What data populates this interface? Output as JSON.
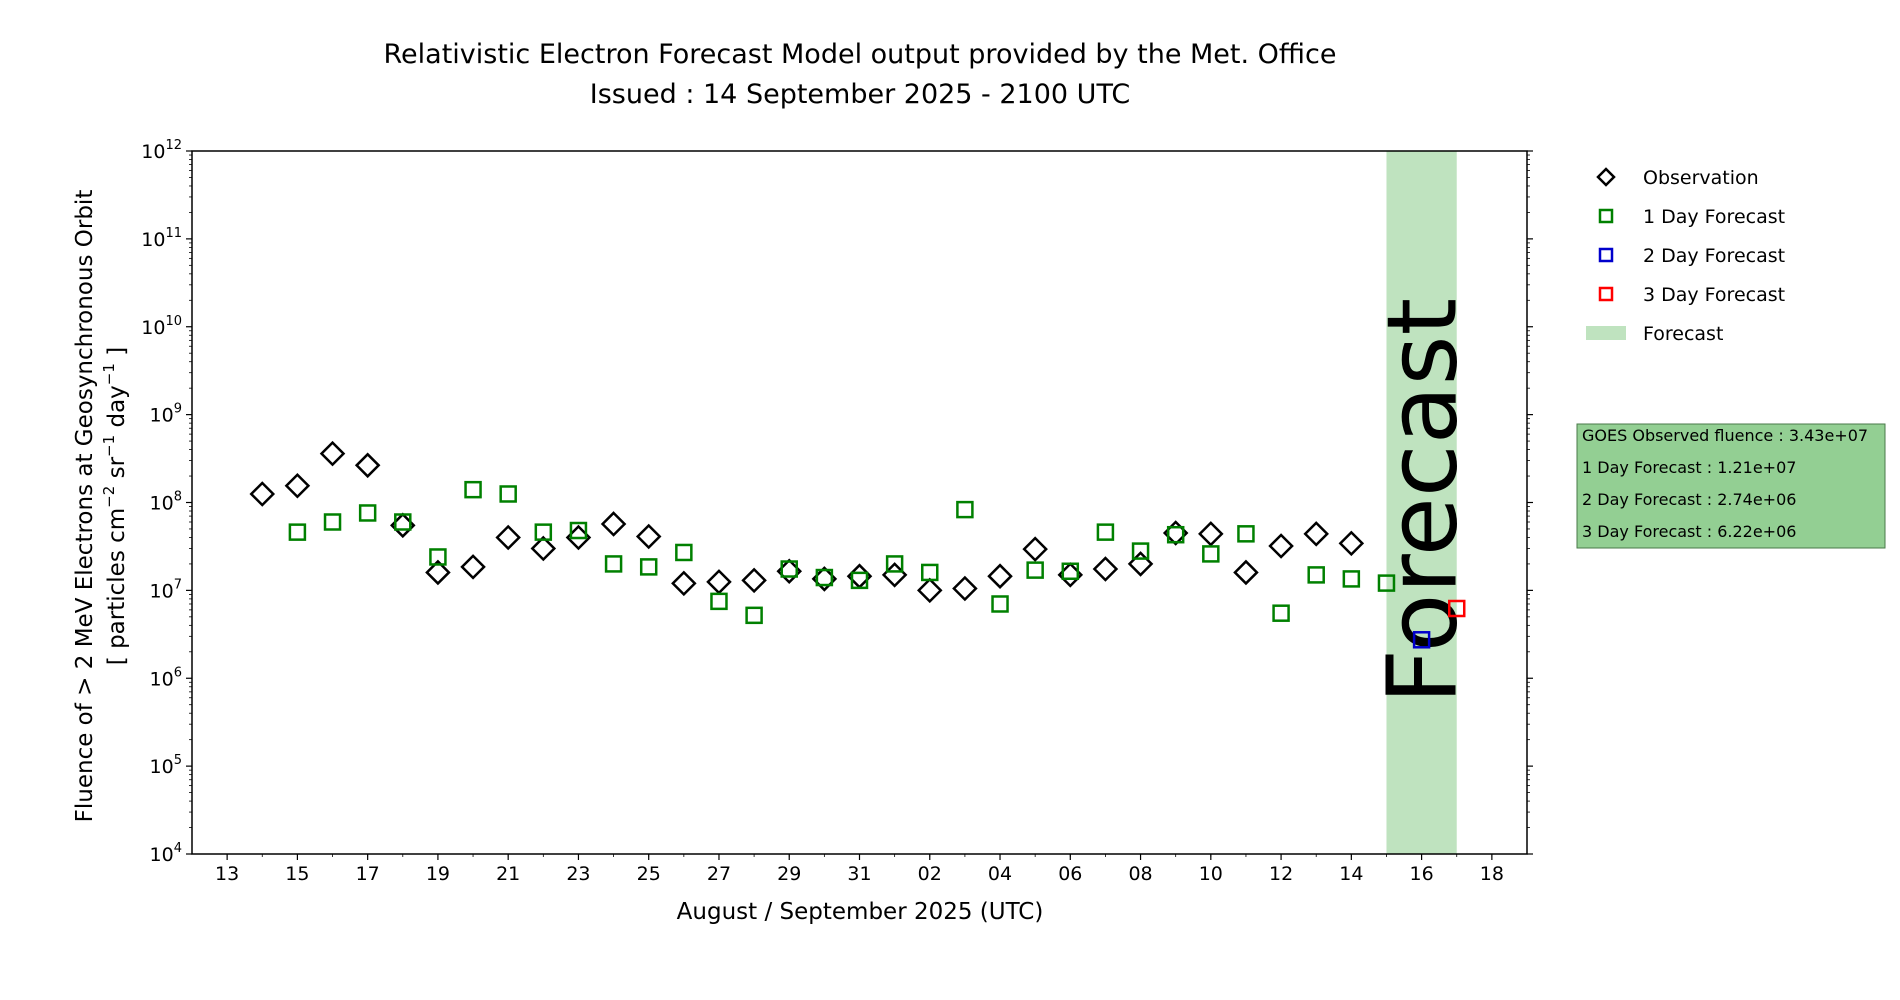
{
  "chart_data": {
    "type": "scatter",
    "title": "Relativistic Electron Forecast Model output provided by the Met. Office",
    "subtitle": "Issued : 14 September 2025 - 2100 UTC",
    "xlabel": "August / September 2025 (UTC)",
    "ylabel": {
      "line1": "Fluence of > 2 MeV Electrons at Geosynchronous Orbit",
      "line2": "[ particles cm",
      "line2_sup1": "−2",
      "line2_mid": " sr",
      "line2_sup2": "−1",
      "line2_end": " day",
      "line2_sup3": "−1",
      "line2_close": " ]"
    },
    "y_scale": "log",
    "ylim_exp": [
      4,
      12
    ],
    "y_ticks": [
      {
        "base": "10",
        "exp": "4"
      },
      {
        "base": "10",
        "exp": "5"
      },
      {
        "base": "10",
        "exp": "6"
      },
      {
        "base": "10",
        "exp": "7"
      },
      {
        "base": "10",
        "exp": "8"
      },
      {
        "base": "10",
        "exp": "9"
      },
      {
        "base": "10",
        "exp": "10"
      },
      {
        "base": "10",
        "exp": "11"
      },
      {
        "base": "10",
        "exp": "12"
      }
    ],
    "xlim": [
      "2025-08-12",
      "2025-09-19"
    ],
    "x_ticks": [
      {
        "date": "2025-08-13",
        "label": "13"
      },
      {
        "date": "2025-08-15",
        "label": "15"
      },
      {
        "date": "2025-08-17",
        "label": "17"
      },
      {
        "date": "2025-08-19",
        "label": "19"
      },
      {
        "date": "2025-08-21",
        "label": "21"
      },
      {
        "date": "2025-08-23",
        "label": "23"
      },
      {
        "date": "2025-08-25",
        "label": "25"
      },
      {
        "date": "2025-08-27",
        "label": "27"
      },
      {
        "date": "2025-08-29",
        "label": "29"
      },
      {
        "date": "2025-08-31",
        "label": "31"
      },
      {
        "date": "2025-09-02",
        "label": "02"
      },
      {
        "date": "2025-09-04",
        "label": "04"
      },
      {
        "date": "2025-09-06",
        "label": "06"
      },
      {
        "date": "2025-09-08",
        "label": "08"
      },
      {
        "date": "2025-09-10",
        "label": "10"
      },
      {
        "date": "2025-09-12",
        "label": "12"
      },
      {
        "date": "2025-09-14",
        "label": "14"
      },
      {
        "date": "2025-09-16",
        "label": "16"
      },
      {
        "date": "2025-09-18",
        "label": "18"
      }
    ],
    "forecast_region": {
      "start": "2025-09-15",
      "end": "2025-09-17",
      "label": "Forecast"
    },
    "series": [
      {
        "name": "Observation",
        "marker": "diamond",
        "color": "#000000",
        "points": [
          {
            "x": "2025-08-14",
            "y": 125000000.0
          },
          {
            "x": "2025-08-15",
            "y": 155000000.0
          },
          {
            "x": "2025-08-16",
            "y": 360000000.0
          },
          {
            "x": "2025-08-17",
            "y": 265000000.0
          },
          {
            "x": "2025-08-18",
            "y": 55000000.0
          },
          {
            "x": "2025-08-19",
            "y": 16000000.0
          },
          {
            "x": "2025-08-20",
            "y": 18500000.0
          },
          {
            "x": "2025-08-21",
            "y": 40000000.0
          },
          {
            "x": "2025-08-22",
            "y": 30000000.0
          },
          {
            "x": "2025-08-23",
            "y": 40000000.0
          },
          {
            "x": "2025-08-24",
            "y": 57000000.0
          },
          {
            "x": "2025-08-25",
            "y": 41000000.0
          },
          {
            "x": "2025-08-26",
            "y": 12000000.0
          },
          {
            "x": "2025-08-27",
            "y": 12500000.0
          },
          {
            "x": "2025-08-28",
            "y": 13000000.0
          },
          {
            "x": "2025-08-29",
            "y": 16500000.0
          },
          {
            "x": "2025-08-30",
            "y": 13500000.0
          },
          {
            "x": "2025-08-31",
            "y": 14500000.0
          },
          {
            "x": "2025-09-01",
            "y": 15000000.0
          },
          {
            "x": "2025-09-02",
            "y": 10000000.0
          },
          {
            "x": "2025-09-03",
            "y": 10500000.0
          },
          {
            "x": "2025-09-04",
            "y": 14500000.0
          },
          {
            "x": "2025-09-05",
            "y": 29500000.0
          },
          {
            "x": "2025-09-06",
            "y": 15000000.0
          },
          {
            "x": "2025-09-07",
            "y": 17500000.0
          },
          {
            "x": "2025-09-08",
            "y": 20000000.0
          },
          {
            "x": "2025-09-09",
            "y": 45000000.0
          },
          {
            "x": "2025-09-10",
            "y": 44000000.0
          },
          {
            "x": "2025-09-11",
            "y": 16000000.0
          },
          {
            "x": "2025-09-12",
            "y": 32000000.0
          },
          {
            "x": "2025-09-13",
            "y": 44000000.0
          },
          {
            "x": "2025-09-14",
            "y": 34300000.0
          }
        ]
      },
      {
        "name": "1 Day Forecast",
        "marker": "square",
        "color": "#008000",
        "points": [
          {
            "x": "2025-08-15",
            "y": 46000000.0
          },
          {
            "x": "2025-08-16",
            "y": 60000000.0
          },
          {
            "x": "2025-08-17",
            "y": 76000000.0
          },
          {
            "x": "2025-08-18",
            "y": 60000000.0
          },
          {
            "x": "2025-08-19",
            "y": 24000000.0
          },
          {
            "x": "2025-08-20",
            "y": 140000000.0
          },
          {
            "x": "2025-08-21",
            "y": 125000000.0
          },
          {
            "x": "2025-08-22",
            "y": 46000000.0
          },
          {
            "x": "2025-08-23",
            "y": 48000000.0
          },
          {
            "x": "2025-08-24",
            "y": 20000000.0
          },
          {
            "x": "2025-08-25",
            "y": 18500000.0
          },
          {
            "x": "2025-08-26",
            "y": 27000000.0
          },
          {
            "x": "2025-08-27",
            "y": 7500000.0
          },
          {
            "x": "2025-08-28",
            "y": 5200000.0
          },
          {
            "x": "2025-08-29",
            "y": 17500000.0
          },
          {
            "x": "2025-08-30",
            "y": 14000000.0
          },
          {
            "x": "2025-08-31",
            "y": 13000000.0
          },
          {
            "x": "2025-09-01",
            "y": 20000000.0
          },
          {
            "x": "2025-09-02",
            "y": 16000000.0
          },
          {
            "x": "2025-09-03",
            "y": 83000000.0
          },
          {
            "x": "2025-09-04",
            "y": 7000000.0
          },
          {
            "x": "2025-09-05",
            "y": 17000000.0
          },
          {
            "x": "2025-09-06",
            "y": 16500000.0
          },
          {
            "x": "2025-09-07",
            "y": 46000000.0
          },
          {
            "x": "2025-09-08",
            "y": 28000000.0
          },
          {
            "x": "2025-09-09",
            "y": 43000000.0
          },
          {
            "x": "2025-09-10",
            "y": 26000000.0
          },
          {
            "x": "2025-09-11",
            "y": 44000000.0
          },
          {
            "x": "2025-09-12",
            "y": 5500000.0
          },
          {
            "x": "2025-09-13",
            "y": 15000000.0
          },
          {
            "x": "2025-09-14",
            "y": 13500000.0
          },
          {
            "x": "2025-09-15",
            "y": 12100000.0
          }
        ]
      },
      {
        "name": "2 Day Forecast",
        "marker": "square",
        "color": "#0000cc",
        "points": [
          {
            "x": "2025-09-16",
            "y": 2740000.0
          }
        ]
      },
      {
        "name": "3 Day Forecast",
        "marker": "square",
        "color": "#ff0000",
        "points": [
          {
            "x": "2025-09-17",
            "y": 6220000.0
          }
        ]
      }
    ],
    "legend": {
      "placement": "right",
      "entries": [
        {
          "label": "Observation",
          "marker": "diamond",
          "color": "#000000"
        },
        {
          "label": "1 Day Forecast",
          "marker": "square",
          "color": "#008000"
        },
        {
          "label": "2 Day Forecast",
          "marker": "square",
          "color": "#0000cc"
        },
        {
          "label": "3 Day Forecast",
          "marker": "square",
          "color": "#ff0000"
        },
        {
          "label": "Forecast",
          "marker": "patch",
          "color": "#bfe3bf"
        }
      ]
    },
    "info_box": {
      "lines": [
        "GOES Observed fluence : 3.43e+07",
        "1 Day Forecast : 1.21e+07",
        "2 Day Forecast : 2.74e+06",
        "3 Day Forecast : 6.22e+06"
      ],
      "background": "#93cf93"
    },
    "forecast_band_color": "#bfe3bf",
    "forecast_text_color": "#8aa38a"
  }
}
